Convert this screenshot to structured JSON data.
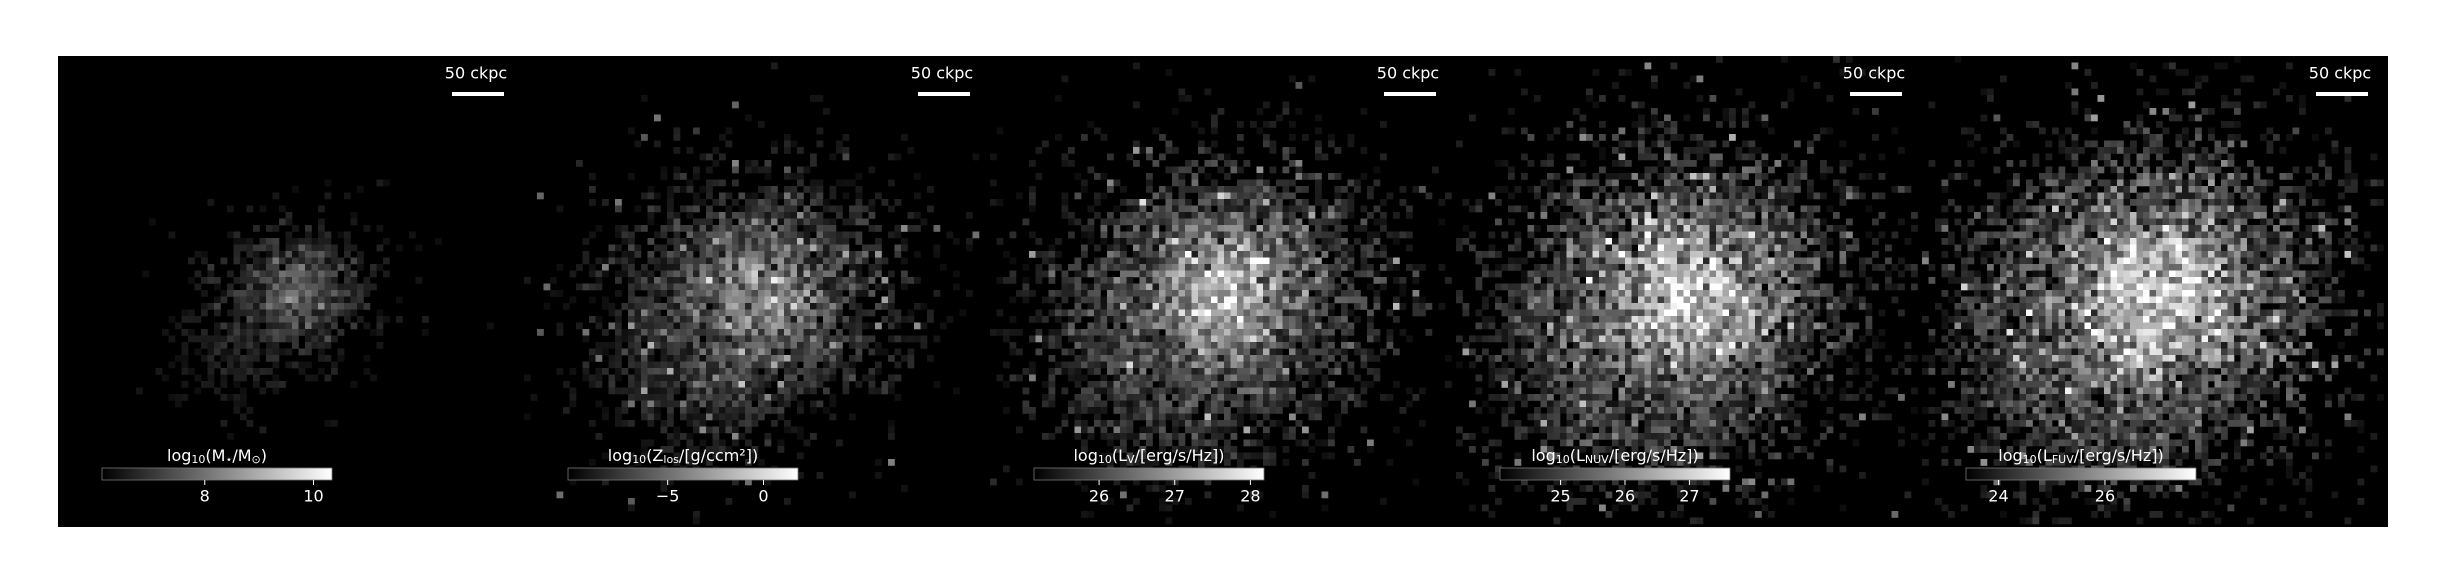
{
  "chart_data": [
    {
      "type": "image",
      "scale_bar_label": "50 ckpc",
      "colorbar": {
        "label_parts": [
          "log",
          "10",
          "(M",
          "⋆",
          "/M",
          "⊙",
          ")"
        ],
        "clim": [
          6.11,
          10.34
        ],
        "cticks": [
          8,
          10
        ]
      }
    },
    {
      "type": "image",
      "scale_bar_label": "50 ckpc",
      "colorbar": {
        "label_parts": [
          "log",
          "10",
          "(Z",
          "los",
          "/[g/ccm²])"
        ],
        "clim": [
          -10.2,
          1.8
        ],
        "cticks": [
          {
            "value": -5,
            "label": "−5"
          },
          0
        ]
      }
    },
    {
      "type": "image",
      "scale_bar_label": "50 ckpc",
      "colorbar": {
        "label_parts": [
          "log",
          "10",
          "(L",
          "V",
          "/[erg/s/Hz])"
        ],
        "clim": [
          25.14,
          28.18
        ],
        "cticks": [
          26,
          27,
          28
        ]
      }
    },
    {
      "type": "image",
      "scale_bar_label": "50 ckpc",
      "colorbar": {
        "label_parts": [
          "log",
          "10",
          "(L",
          "NUV",
          "/[erg/s/Hz])"
        ],
        "clim": [
          24.06,
          27.63
        ],
        "cticks": [
          25,
          26,
          27
        ]
      }
    },
    {
      "type": "image",
      "scale_bar_label": "50 ckpc",
      "colorbar": {
        "label_parts": [
          "log",
          "10",
          "(L",
          "FUV",
          "/[erg/s/Hz])"
        ],
        "clim": [
          23.39,
          27.71
        ],
        "cticks": [
          24,
          26
        ]
      }
    }
  ]
}
